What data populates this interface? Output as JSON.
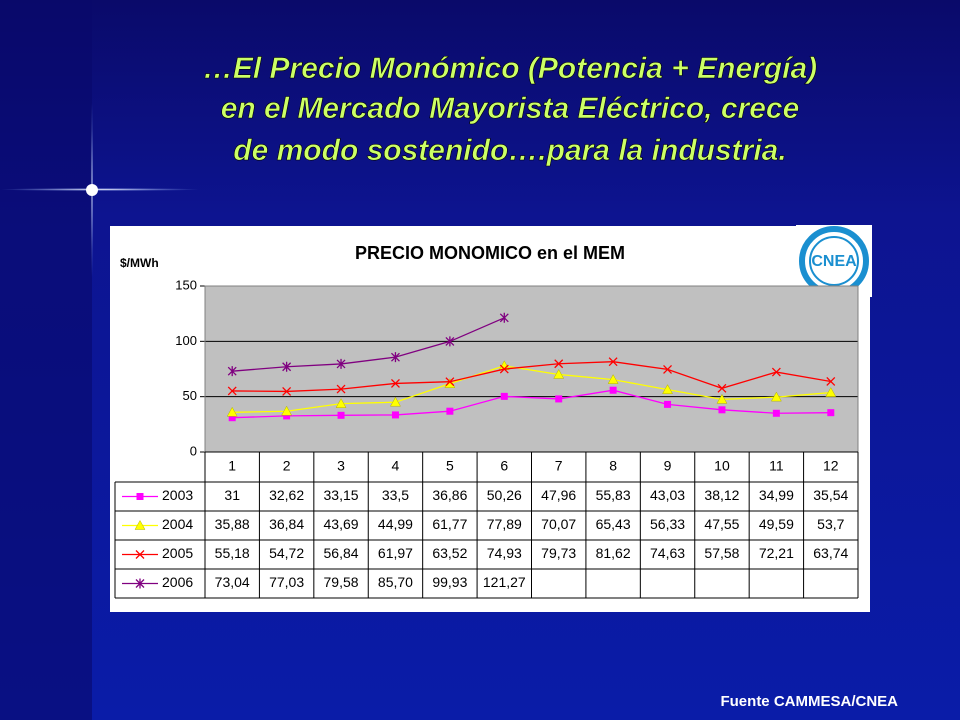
{
  "slide_title": [
    "…El Precio Monómico (Potencia + Energía)",
    "en el Mercado Mayorista Eléctrico, crece",
    "de modo sostenido….para la industria."
  ],
  "source": "Fuente CAMMESA/CNEA",
  "logo_text": "CNEA",
  "chart_data": {
    "type": "line",
    "title": "PRECIO MONOMICO en el MEM",
    "y_label": "$/MWh",
    "categories": [
      "1",
      "2",
      "3",
      "4",
      "5",
      "6",
      "7",
      "8",
      "9",
      "10",
      "11",
      "12"
    ],
    "ylim": [
      0,
      150
    ],
    "yticks": [
      0,
      50,
      100,
      150
    ],
    "grid": true,
    "series": [
      {
        "name": "2003",
        "color": "#ff00ff",
        "marker": "square",
        "values": [
          31,
          32.62,
          33.15,
          33.5,
          36.86,
          50.26,
          47.96,
          55.83,
          43.03,
          38.12,
          34.99,
          35.54
        ],
        "value_labels": [
          "31",
          "32,62",
          "33,15",
          "33,5",
          "36,86",
          "50,26",
          "47,96",
          "55,83",
          "43,03",
          "38,12",
          "34,99",
          "35,54"
        ]
      },
      {
        "name": "2004",
        "color": "#ffff00",
        "marker": "triangle",
        "values": [
          35.88,
          36.84,
          43.69,
          44.99,
          61.77,
          77.89,
          70.07,
          65.43,
          56.33,
          47.55,
          49.59,
          53.7
        ],
        "value_labels": [
          "35,88",
          "36,84",
          "43,69",
          "44,99",
          "61,77",
          "77,89",
          "70,07",
          "65,43",
          "56,33",
          "47,55",
          "49,59",
          "53,7"
        ]
      },
      {
        "name": "2005",
        "color": "#ff0000",
        "marker": "x",
        "values": [
          55.18,
          54.72,
          56.84,
          61.97,
          63.52,
          74.93,
          79.73,
          81.62,
          74.63,
          57.58,
          72.21,
          63.74
        ],
        "value_labels": [
          "55,18",
          "54,72",
          "56,84",
          "61,97",
          "63,52",
          "74,93",
          "79,73",
          "81,62",
          "74,63",
          "57,58",
          "72,21",
          "63,74"
        ]
      },
      {
        "name": "2006",
        "color": "#800080",
        "marker": "star",
        "values": [
          73.04,
          77.03,
          79.58,
          85.7,
          99.93,
          121.27,
          null,
          null,
          null,
          null,
          null,
          null
        ],
        "value_labels": [
          "73,04",
          "77,03",
          "79,58",
          "85,70",
          "99,93",
          "121,27",
          null,
          null,
          null,
          null,
          null,
          null
        ]
      }
    ]
  }
}
